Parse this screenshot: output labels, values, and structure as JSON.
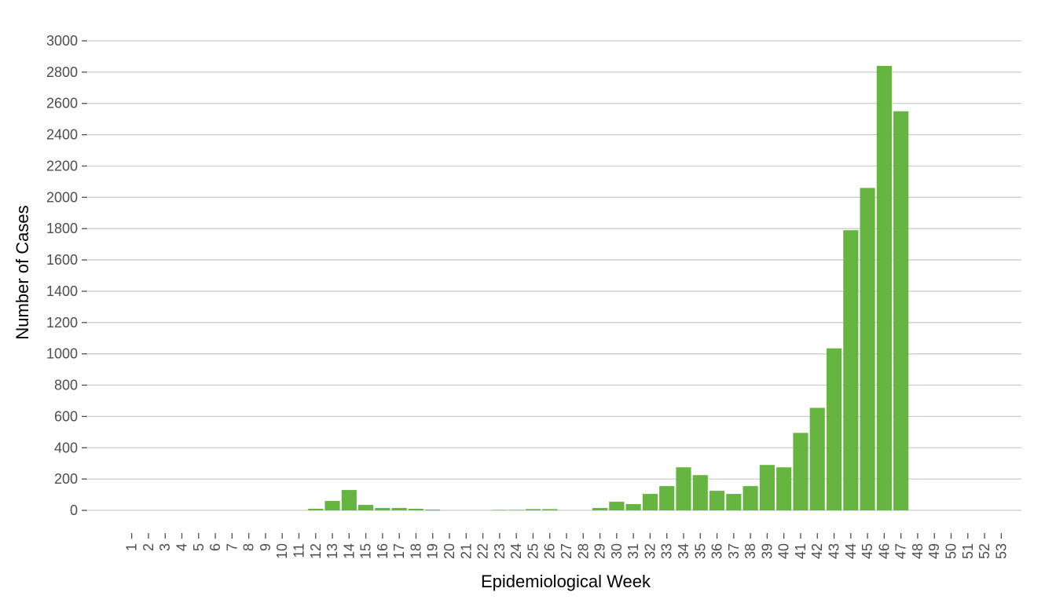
{
  "chart_data": {
    "type": "bar",
    "x_label": "Epidemiological Week",
    "y_label": "Number of Cases",
    "categories": [
      "1",
      "2",
      "3",
      "4",
      "5",
      "6",
      "7",
      "8",
      "9",
      "10",
      "11",
      "12",
      "13",
      "14",
      "15",
      "16",
      "17",
      "18",
      "19",
      "20",
      "21",
      "22",
      "23",
      "24",
      "25",
      "26",
      "27",
      "28",
      "29",
      "30",
      "31",
      "32",
      "33",
      "34",
      "35",
      "36",
      "37",
      "38",
      "39",
      "40",
      "41",
      "42",
      "43",
      "44",
      "45",
      "46",
      "47",
      "48",
      "49",
      "50",
      "51",
      "52",
      "53"
    ],
    "values": [
      0,
      0,
      0,
      0,
      0,
      0,
      0,
      0,
      0,
      0,
      0,
      10,
      60,
      130,
      35,
      15,
      15,
      10,
      5,
      0,
      0,
      0,
      3,
      3,
      8,
      8,
      0,
      0,
      15,
      55,
      40,
      105,
      155,
      275,
      225,
      125,
      105,
      155,
      290,
      275,
      495,
      655,
      1035,
      1790,
      2060,
      2840,
      2550,
      0,
      0,
      0,
      0,
      0,
      0
    ],
    "color": "#66b540",
    "ylim": [
      0,
      3000
    ],
    "yticks": [
      0,
      200,
      400,
      600,
      800,
      1000,
      1200,
      1400,
      1600,
      1800,
      2000,
      2200,
      2400,
      2600,
      2800,
      3000
    ],
    "grid": true
  }
}
